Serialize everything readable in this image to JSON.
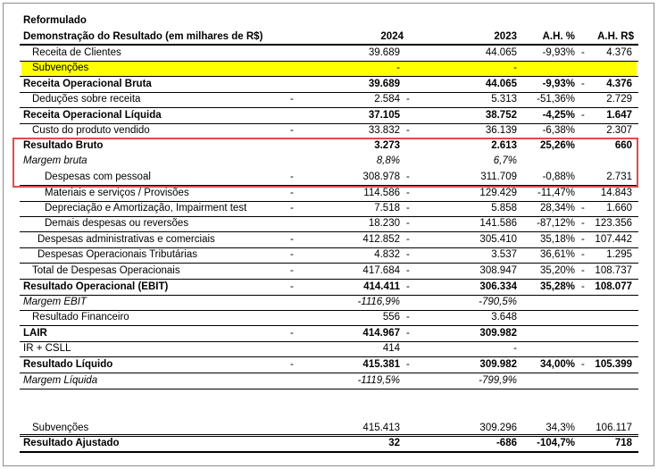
{
  "header": {
    "title": "Reformulado",
    "subtitle": "Demonstração do Resultado (em milhares de R$)",
    "col_2024": "2024",
    "col_2023": "2023",
    "col_ah_pct": "A.H. %",
    "col_ah_rs": "A.H. R$"
  },
  "colors": {
    "highlight": "#ffff00",
    "box_border": "#e34b4b"
  },
  "rows": [
    {
      "label": "Receita de Clientes",
      "mark": "",
      "v2024": "39.689",
      "mark2": "",
      "v2023": "44.065",
      "ahp": "-9,93%",
      "mark3": "-",
      "ahr": "4.376"
    },
    {
      "label": "Subvenções",
      "mark": "",
      "v2024": "-",
      "mark2": "",
      "v2023": "-",
      "ahp": "",
      "mark3": "",
      "ahr": ""
    },
    {
      "label": "Receita Operacional Bruta",
      "mark": "",
      "v2024": "39.689",
      "mark2": "",
      "v2023": "44.065",
      "ahp": "-9,93%",
      "mark3": "-",
      "ahr": "4.376"
    },
    {
      "label": "Deduções sobre receita",
      "mark": "-",
      "v2024": "2.584",
      "mark2": "-",
      "v2023": "5.313",
      "ahp": "-51,36%",
      "mark3": "",
      "ahr": "2.729"
    },
    {
      "label": "Receita Operacional Líquida",
      "mark": "",
      "v2024": "37.105",
      "mark2": "",
      "v2023": "38.752",
      "ahp": "-4,25%",
      "mark3": "-",
      "ahr": "1.647"
    },
    {
      "label": "Custo do produto vendido",
      "mark": "-",
      "v2024": "33.832",
      "mark2": "-",
      "v2023": "36.139",
      "ahp": "-6,38%",
      "mark3": "",
      "ahr": "2.307"
    },
    {
      "label": "Resultado Bruto",
      "mark": "",
      "v2024": "3.273",
      "mark2": "",
      "v2023": "2.613",
      "ahp": "25,26%",
      "mark3": "",
      "ahr": "660"
    },
    {
      "label": "Margem bruta",
      "mark": "",
      "v2024": "8,8%",
      "mark2": "",
      "v2023": "6,7%",
      "ahp": "",
      "mark3": "",
      "ahr": ""
    },
    {
      "label": "Despesas com pessoal",
      "mark": "-",
      "v2024": "308.978",
      "mark2": "-",
      "v2023": "311.709",
      "ahp": "-0,88%",
      "mark3": "",
      "ahr": "2.731"
    },
    {
      "label": "Materiais e serviços / Provisões",
      "mark": "-",
      "v2024": "114.586",
      "mark2": "-",
      "v2023": "129.429",
      "ahp": "-11,47%",
      "mark3": "",
      "ahr": "14.843"
    },
    {
      "label": "Depreciação e Amortização, Impairment test",
      "mark": "-",
      "v2024": "7.518",
      "mark2": "-",
      "v2023": "5.858",
      "ahp": "28,34%",
      "mark3": "-",
      "ahr": "1.660"
    },
    {
      "label": "Demais despesas ou reversões",
      "mark": "",
      "v2024": "18.230",
      "mark2": "-",
      "v2023": "141.586",
      "ahp": "-87,12%",
      "mark3": "-",
      "ahr": "123.356"
    },
    {
      "label": "Despesas administrativas e comerciais",
      "mark": "-",
      "v2024": "412.852",
      "mark2": "-",
      "v2023": "305.410",
      "ahp": "35,18%",
      "mark3": "-",
      "ahr": "107.442"
    },
    {
      "label": "Despesas Operacionais Tributárias",
      "mark": "-",
      "v2024": "4.832",
      "mark2": "-",
      "v2023": "3.537",
      "ahp": "36,61%",
      "mark3": "-",
      "ahr": "1.295"
    },
    {
      "label": "Total de Despesas Operacionais",
      "mark": "-",
      "v2024": "417.684",
      "mark2": "-",
      "v2023": "308.947",
      "ahp": "35,20%",
      "mark3": "-",
      "ahr": "108.737"
    },
    {
      "label": "Resultado Operacional (EBIT)",
      "mark": "-",
      "v2024": "414.411",
      "mark2": "-",
      "v2023": "306.334",
      "ahp": "35,28%",
      "mark3": "-",
      "ahr": "108.077"
    },
    {
      "label": "Margem EBIT",
      "mark": "",
      "v2024": "-1116,9%",
      "mark2": "",
      "v2023": "-790,5%",
      "ahp": "",
      "mark3": "",
      "ahr": ""
    },
    {
      "label": "Resultado Financeiro",
      "mark": "",
      "v2024": "556",
      "mark2": "-",
      "v2023": "3.648",
      "ahp": "",
      "mark3": "",
      "ahr": ""
    },
    {
      "label": "LAIR",
      "mark": "-",
      "v2024": "414.967",
      "mark2": "-",
      "v2023": "309.982",
      "ahp": "",
      "mark3": "",
      "ahr": ""
    },
    {
      "label": "IR + CSLL",
      "mark": "",
      "v2024": "414",
      "mark2": "",
      "v2023": "-",
      "ahp": "",
      "mark3": "",
      "ahr": ""
    },
    {
      "label": "Resultado Líquido",
      "mark": "-",
      "v2024": "415.381",
      "mark2": "-",
      "v2023": "309.982",
      "ahp": "34,00%",
      "mark3": "-",
      "ahr": "105.399"
    },
    {
      "label": "Margem Líquida",
      "mark": "",
      "v2024": "-1119,5%",
      "mark2": "",
      "v2023": "-799,9%",
      "ahp": "",
      "mark3": "",
      "ahr": ""
    },
    {
      "label": "Subvenções",
      "mark": "",
      "v2024": "415.413",
      "mark2": "",
      "v2023": "309.296",
      "ahp": "34,3%",
      "mark3": "",
      "ahr": "106.117"
    },
    {
      "label": "Resultado Ajustado",
      "mark": "",
      "v2024": "32",
      "mark2": "",
      "v2023": "-686",
      "ahp": "-104,7%",
      "mark3": "",
      "ahr": "718"
    }
  ]
}
